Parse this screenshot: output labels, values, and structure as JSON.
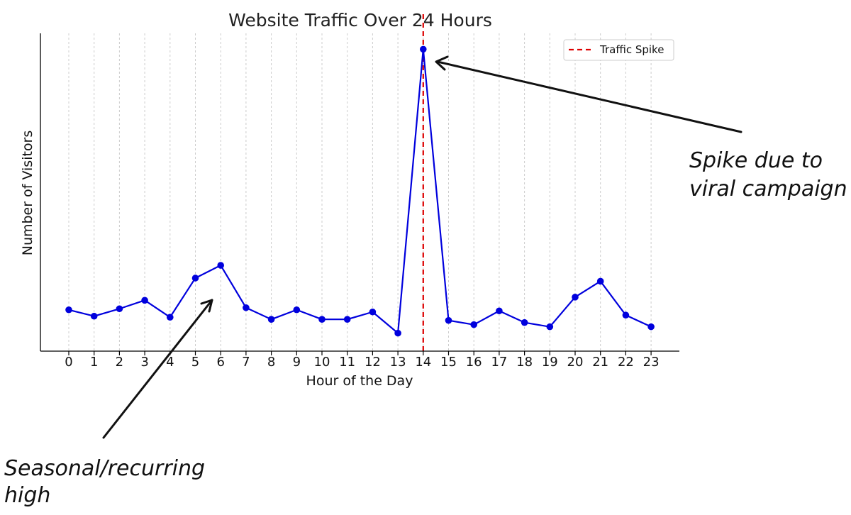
{
  "chart_data": {
    "type": "line",
    "title": "Website Traffic Over 24 Hours",
    "xlabel": "Hour of the Day",
    "ylabel": "Number of Visitors",
    "x": [
      0,
      1,
      2,
      3,
      4,
      5,
      6,
      7,
      8,
      9,
      10,
      11,
      12,
      13,
      14,
      15,
      16,
      17,
      18,
      19,
      20,
      21,
      22,
      23
    ],
    "categories": [
      "0",
      "1",
      "2",
      "3",
      "4",
      "5",
      "6",
      "7",
      "8",
      "9",
      "10",
      "11",
      "12",
      "13",
      "14",
      "15",
      "16",
      "17",
      "18",
      "19",
      "20",
      "21",
      "22",
      "23"
    ],
    "series": [
      {
        "color": "#0000dd",
        "values": [
          129,
          123,
          130,
          138,
          122,
          159,
          171,
          131,
          120,
          129,
          120,
          120,
          127,
          107,
          375,
          119,
          115,
          128,
          117,
          113,
          141,
          156,
          124,
          113
        ]
      }
    ],
    "ylim": [
      90,
      390
    ],
    "y_ticks_shown": false,
    "grid": {
      "vertical": true,
      "horizontal": false,
      "style": "dotted",
      "color": "#cccccc"
    },
    "reference_line": {
      "x": 14,
      "orientation": "vertical",
      "style": "dashed",
      "color": "#dd0000",
      "label": "Traffic Spike"
    },
    "legend": {
      "placement": "top-right",
      "entries": [
        "Traffic Spike"
      ]
    },
    "annotations": [
      {
        "text_lines": [
          "Spike due to",
          "viral campaign"
        ],
        "points_to_x": 14
      },
      {
        "text_lines": [
          "Seasonal/recurring",
          "high"
        ],
        "points_to_x": 6
      }
    ]
  }
}
